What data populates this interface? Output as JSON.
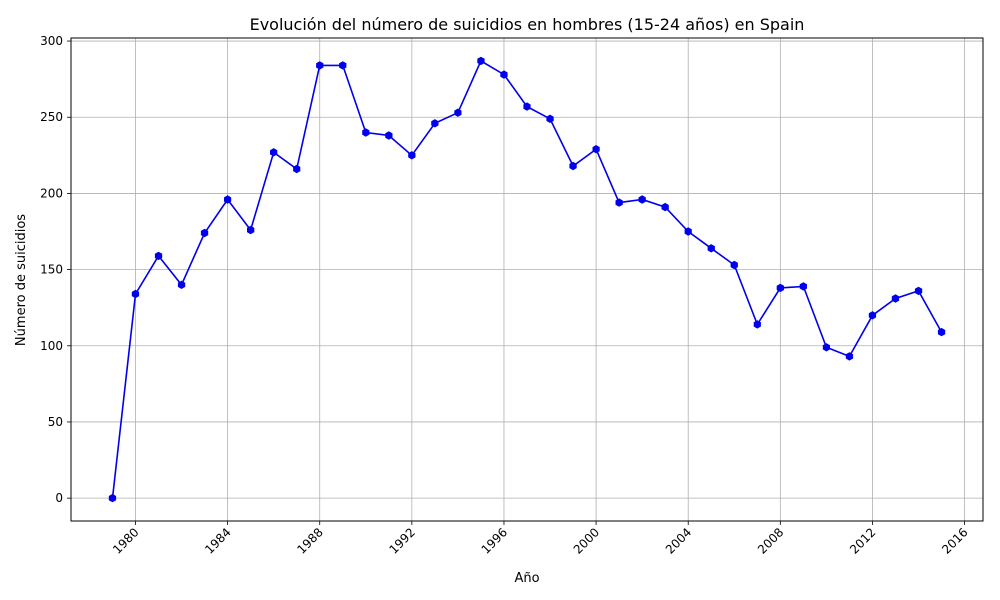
{
  "chart_data": {
    "type": "line",
    "title": "Evolución del número de suicidios en hombres (15-24 años) en Spain",
    "xlabel": "Año",
    "ylabel": "Número de suicidios",
    "xlim": [
      1977.2,
      2016.8
    ],
    "ylim": [
      -15,
      302
    ],
    "x_ticks": [
      1980,
      1984,
      1988,
      1992,
      1996,
      2000,
      2004,
      2008,
      2012,
      2016
    ],
    "y_ticks": [
      0,
      50,
      100,
      150,
      200,
      250,
      300
    ],
    "x_tick_rotation": 45,
    "grid": true,
    "legend": "none",
    "series": [
      {
        "color": "#0000ee",
        "marker": "hexagon",
        "x": [
          1979,
          1980,
          1981,
          1982,
          1983,
          1984,
          1985,
          1986,
          1987,
          1988,
          1989,
          1990,
          1991,
          1992,
          1993,
          1994,
          1995,
          1996,
          1997,
          1998,
          1999,
          2000,
          2001,
          2002,
          2003,
          2004,
          2005,
          2006,
          2007,
          2008,
          2009,
          2010,
          2011,
          2012,
          2013,
          2014,
          2015
        ],
        "values": [
          0,
          134,
          159,
          140,
          174,
          196,
          176,
          227,
          216,
          284,
          284,
          240,
          238,
          225,
          246,
          253,
          287,
          278,
          257,
          249,
          218,
          229,
          194,
          196,
          191,
          175,
          164,
          153,
          114,
          138,
          139,
          99,
          93,
          120,
          131,
          136,
          109
        ]
      }
    ]
  }
}
